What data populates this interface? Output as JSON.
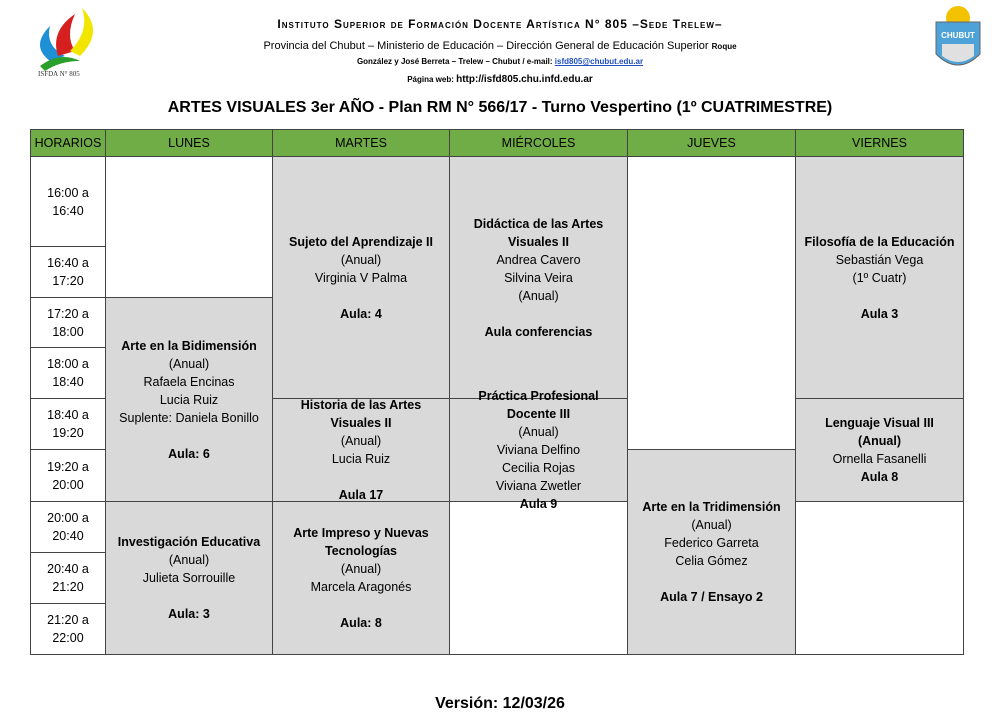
{
  "header": {
    "institute": "Instituto Superior de Formación Docente Artística N° 805 –Sede Trelew–",
    "line2": "Provincia del Chubut – Ministerio de Educación – Dirección General de Educación Superior",
    "line2_small": "Roque",
    "line3": "González y José Berreta – Trelew – Chubut  /  e-mail:",
    "email": "isfd805@chubut.edu.ar",
    "web_label": "Página web:",
    "web": "http://isfd805.chu.infd.edu.ar",
    "logo_left_text": "ISFDA N° 805",
    "logo_right_text": "CHUBUT"
  },
  "title": "ARTES VISUALES 3er AÑO  - Plan RM N° 566/17 - Turno Vespertino (1º CUATRIMESTRE)",
  "columns": [
    "HORARIOS",
    "LUNES",
    "MARTES",
    "MIÉRCOLES",
    "JUEVES",
    "VIERNES"
  ],
  "times": [
    "16:00 a 16:40",
    "16:40 a 17:20",
    "17:20 a 18:00",
    "18:00 a 18:40",
    "18:40 a 19:20",
    "19:20 a 20:00",
    "20:00 a 20:40",
    "20:40 a 21:20",
    "21:20 a 22:00"
  ],
  "classes": [
    {
      "day": 1,
      "start": 2,
      "end": 6,
      "lines": [
        [
          "Arte en la Bidimensión",
          1
        ],
        [
          "(Anual)",
          0
        ],
        [
          "Rafaela Encinas",
          0
        ],
        [
          "Lucia Ruiz",
          0
        ],
        [
          "Suplente: Daniela Bonillo",
          0
        ],
        [
          "",
          0
        ],
        [
          "Aula: 6",
          1
        ]
      ]
    },
    {
      "day": 1,
      "start": 6,
      "end": 9,
      "lines": [
        [
          "Investigación Educativa",
          1
        ],
        [
          "(Anual)",
          0
        ],
        [
          "Julieta Sorrouille",
          0
        ],
        [
          "",
          0
        ],
        [
          "Aula: 3",
          1
        ]
      ]
    },
    {
      "day": 2,
      "start": 0,
      "end": 4,
      "lines": [
        [
          "Sujeto del Aprendizaje II",
          1
        ],
        [
          "(Anual)",
          0
        ],
        [
          "Virginia V Palma",
          0
        ],
        [
          "",
          0
        ],
        [
          "Aula: 4",
          1
        ]
      ]
    },
    {
      "day": 2,
      "start": 4,
      "end": 6,
      "lines": [
        [
          "Historia de las Artes",
          1
        ],
        [
          "Visuales II",
          1
        ],
        [
          "(Anual)",
          0
        ],
        [
          "Lucia Ruiz",
          0
        ],
        [
          "",
          0
        ],
        [
          "Aula 17",
          1
        ]
      ]
    },
    {
      "day": 2,
      "start": 6,
      "end": 9,
      "lines": [
        [
          "Arte Impreso y Nuevas",
          1
        ],
        [
          "Tecnologías",
          1
        ],
        [
          "(Anual)",
          0
        ],
        [
          "Marcela Aragonés",
          0
        ],
        [
          "",
          0
        ],
        [
          "Aula: 8",
          1
        ]
      ]
    },
    {
      "day": 3,
      "start": 0,
      "end": 4,
      "lines": [
        [
          "Didáctica de las Artes",
          1
        ],
        [
          "Visuales II",
          1
        ],
        [
          "Andrea Cavero",
          0
        ],
        [
          "Silvina Veira",
          0
        ],
        [
          "(Anual)",
          0
        ],
        [
          "",
          0
        ],
        [
          "Aula conferencias",
          1
        ]
      ]
    },
    {
      "day": 3,
      "start": 4,
      "end": 6,
      "lines": [
        [
          "Práctica Profesional",
          1
        ],
        [
          "Docente III",
          1
        ],
        [
          "(Anual)",
          0
        ],
        [
          "Viviana Delfino",
          0
        ],
        [
          "Cecilia Rojas",
          0
        ],
        [
          "Viviana Zwetler",
          0
        ],
        [
          "Aula 9",
          1
        ]
      ]
    },
    {
      "day": 4,
      "start": 5,
      "end": 9,
      "lines": [
        [
          "Arte en la Tridimensión",
          1
        ],
        [
          "(Anual)",
          0
        ],
        [
          "Federico Garreta",
          0
        ],
        [
          "Celia Gómez",
          0
        ],
        [
          "",
          0
        ],
        [
          "Aula 7 / Ensayo 2",
          1
        ]
      ]
    },
    {
      "day": 5,
      "start": 0,
      "end": 4,
      "lines": [
        [
          "Filosofía de la Educación",
          1
        ],
        [
          "Sebastián Vega",
          0
        ],
        [
          "(1º Cuatr)",
          0
        ],
        [
          "",
          0
        ],
        [
          "Aula 3",
          1
        ]
      ]
    },
    {
      "day": 5,
      "start": 4,
      "end": 6,
      "lines": [
        [
          "Lenguaje Visual III",
          1
        ],
        [
          "(Anual)",
          1
        ],
        [
          "Ornella Fasanelli",
          0
        ],
        [
          "Aula 8",
          1
        ]
      ]
    }
  ],
  "empty": [
    {
      "day": 1,
      "start": 0,
      "end": 2
    },
    {
      "day": 3,
      "start": 6,
      "end": 9
    },
    {
      "day": 4,
      "start": 0,
      "end": 5
    },
    {
      "day": 5,
      "start": 6,
      "end": 9
    }
  ],
  "version": "Versión: 12/03/26",
  "colors": {
    "header_green": "#70ad47",
    "class_gray": "#d9d9d9"
  }
}
